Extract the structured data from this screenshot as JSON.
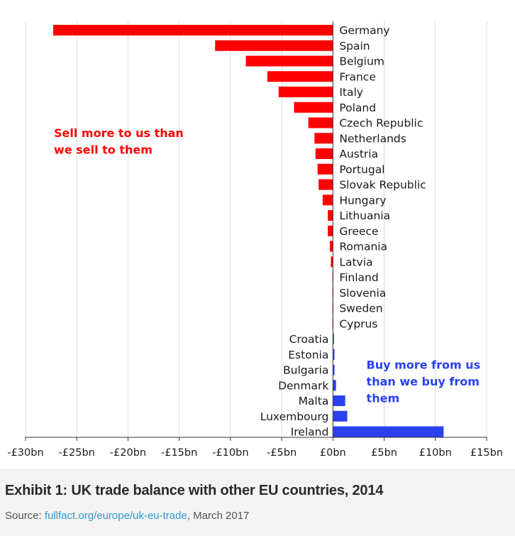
{
  "colors": {
    "negative": "#ff0000",
    "positive": "#2b41f0",
    "grid": "#d9d9d9",
    "axis": "#333333"
  },
  "chart_data": {
    "type": "bar",
    "orientation": "horizontal",
    "title": "",
    "xlabel": "",
    "ylabel": "",
    "xlim": [
      -30,
      15
    ],
    "x_ticks": [
      -30,
      -25,
      -20,
      -15,
      -10,
      -5,
      0,
      5,
      10,
      15
    ],
    "x_tick_labels": [
      "-£30bn",
      "-£25bn",
      "-£20bn",
      "-£15bn",
      "-£10bn",
      "-£5bn",
      "£0bn",
      "£5bn",
      "£10bn",
      "£15bn"
    ],
    "grid": "vertical",
    "categories": [
      "Germany",
      "Spain",
      "Belgium",
      "France",
      "Italy",
      "Poland",
      "Czech Republic",
      "Netherlands",
      "Austria",
      "Portugal",
      "Slovak Republic",
      "Hungary",
      "Lithuania",
      "Greece",
      "Romania",
      "Latvia",
      "Finland",
      "Slovenia",
      "Sweden",
      "Cyprus",
      "Croatia",
      "Estonia",
      "Bulgaria",
      "Denmark",
      "Malta",
      "Luxembourg",
      "Ireland"
    ],
    "values": [
      -27.3,
      -11.5,
      -8.5,
      -6.4,
      -5.3,
      -3.8,
      -2.4,
      -1.8,
      -1.7,
      -1.5,
      -1.4,
      -1.0,
      -0.5,
      -0.5,
      -0.3,
      -0.2,
      -0.05,
      -0.03,
      -0.03,
      -0.02,
      0.1,
      0.15,
      0.15,
      0.3,
      1.2,
      1.4,
      10.8
    ],
    "annotations": [
      {
        "text_lines": [
          "Sell more to us than",
          "we sell to them"
        ],
        "color": "negative",
        "anchor": {
          "x": -27.3,
          "y": "Czech Republic"
        }
      },
      {
        "text_lines": [
          "Buy more from us",
          "than we buy from",
          "them"
        ],
        "color": "positive",
        "anchor": {
          "x": 3.2,
          "y": "Estonia"
        }
      }
    ]
  },
  "caption": {
    "title": "Exhibit 1: UK trade balance with other EU countries, 2014",
    "source_prefix": "Source: ",
    "source_link": "fullfact.org/europe/uk-eu-trade",
    "source_suffix": ", March 2017"
  }
}
